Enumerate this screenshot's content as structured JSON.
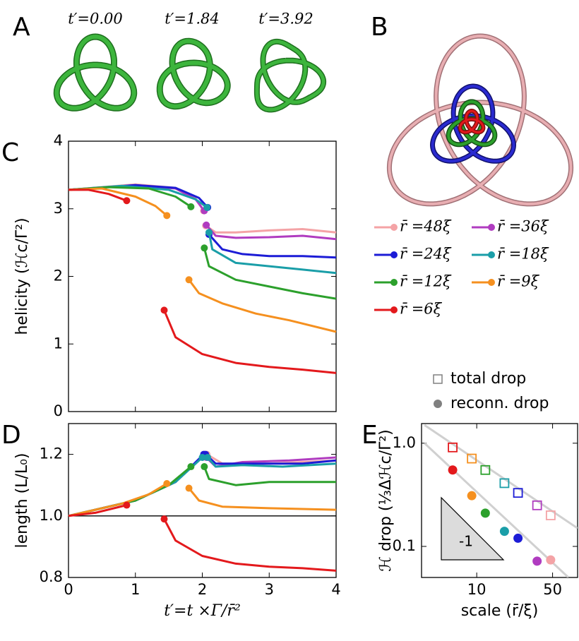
{
  "panel_a": {
    "label": "A",
    "captions": [
      "t′=0.00",
      "t′=1.84",
      "t′=3.92"
    ]
  },
  "panel_b": {
    "label": "B"
  },
  "chart_data": [
    {
      "type": "line",
      "panel_label": "C",
      "ylabel": "helicity (ℋc/Γ²)",
      "xlim": [
        0,
        4
      ],
      "xticks": [
        0,
        1,
        2,
        3,
        4
      ],
      "ylim": [
        0,
        4
      ],
      "yticks": [
        0,
        1,
        2,
        3,
        4
      ],
      "legend": "right",
      "series": [
        {
          "name": "r̄ =48ξ",
          "color": "#f4a3a6",
          "x": [
            0,
            1,
            1.6,
            1.9,
            2.02,
            null,
            2.05,
            2.2,
            2.5,
            3,
            3.5,
            4
          ],
          "values": [
            3.28,
            3.36,
            3.31,
            3.15,
            2.97,
            null,
            2.75,
            2.65,
            2.65,
            2.68,
            2.7,
            2.65
          ]
        },
        {
          "name": "r̄ =36ξ",
          "color": "#b03cc0",
          "x": [
            0,
            1,
            1.6,
            1.9,
            2.03,
            null,
            2.06,
            2.2,
            2.5,
            3,
            3.5,
            4
          ],
          "values": [
            3.28,
            3.35,
            3.3,
            3.14,
            2.97,
            null,
            2.76,
            2.6,
            2.57,
            2.58,
            2.6,
            2.55
          ]
        },
        {
          "name": "r̄ =24ξ",
          "color": "#1c1cd6",
          "x": [
            0,
            1,
            1.6,
            1.95,
            2.08,
            null,
            2.1,
            2.3,
            2.6,
            3,
            3.5,
            4
          ],
          "values": [
            3.28,
            3.35,
            3.31,
            3.16,
            3.02,
            null,
            2.62,
            2.4,
            2.33,
            2.3,
            2.3,
            2.28
          ]
        },
        {
          "name": "r̄ =18ξ",
          "color": "#1a9ea8",
          "x": [
            0,
            0.8,
            1.5,
            1.9,
            2.07,
            null,
            2.1,
            2.15,
            2.5,
            3,
            3.5,
            4
          ],
          "values": [
            3.28,
            3.34,
            3.28,
            3.14,
            3.02,
            null,
            2.65,
            2.4,
            2.2,
            2.15,
            2.1,
            2.05
          ]
        },
        {
          "name": "r̄ =12ξ",
          "color": "#2ca02c",
          "x": [
            0,
            0.6,
            1.2,
            1.6,
            1.83,
            null,
            2.03,
            2.1,
            2.5,
            3,
            3.5,
            4
          ],
          "values": [
            3.28,
            3.32,
            3.3,
            3.18,
            3.03,
            null,
            2.42,
            2.15,
            1.95,
            1.85,
            1.75,
            1.67
          ]
        },
        {
          "name": "r̄ =9ξ",
          "color": "#f5901f",
          "x": [
            0,
            0.5,
            1,
            1.3,
            1.47,
            null,
            1.8,
            1.95,
            2.3,
            2.8,
            3.3,
            4
          ],
          "values": [
            3.28,
            3.3,
            3.18,
            3.04,
            2.9,
            null,
            1.95,
            1.75,
            1.6,
            1.45,
            1.35,
            1.18
          ]
        },
        {
          "name": "r̄ =6ξ",
          "color": "#e3191c",
          "x": [
            0,
            0.3,
            0.6,
            0.87,
            null,
            1.43,
            1.6,
            2,
            2.5,
            3,
            3.5,
            4
          ],
          "values": [
            3.28,
            3.28,
            3.22,
            3.12,
            null,
            1.5,
            1.1,
            0.85,
            0.72,
            0.66,
            0.62,
            0.57
          ]
        }
      ]
    },
    {
      "type": "line",
      "panel_label": "D",
      "ylabel": "length (L/L₀)",
      "xlabel": "t′=t ×Γ/r̄²",
      "xlim": [
        0,
        4
      ],
      "xticks": [
        0,
        1,
        2,
        3,
        4
      ],
      "ylim": [
        0.8,
        1.3
      ],
      "yticks": [
        0.8,
        {
          "value": 1,
          "label": "1.0"
        },
        1.2
      ],
      "reference_line": 1,
      "series": [
        {
          "color": "#f4a3a6",
          "x": [
            0,
            1,
            1.6,
            2.04,
            null,
            2.07,
            2.3,
            3,
            4
          ],
          "values": [
            1,
            1.05,
            1.11,
            1.2,
            null,
            1.2,
            1.17,
            1.17,
            1.18
          ]
        },
        {
          "color": "#b03cc0",
          "x": [
            0,
            1,
            1.6,
            2.03,
            null,
            2.06,
            2.2,
            2.6,
            3.3,
            4
          ],
          "values": [
            1,
            1.05,
            1.11,
            1.2,
            null,
            1.19,
            1.16,
            1.175,
            1.18,
            1.19
          ]
        },
        {
          "color": "#1c1cd6",
          "x": [
            0,
            1,
            1.6,
            2.02,
            null,
            2.05,
            2.2,
            2.8,
            3.5,
            4
          ],
          "values": [
            1,
            1.05,
            1.11,
            1.2,
            null,
            1.2,
            1.17,
            1.17,
            1.17,
            1.18
          ]
        },
        {
          "color": "#1a9ea8",
          "x": [
            0,
            1,
            1.6,
            2.0,
            null,
            2.08,
            2.2,
            2.6,
            3.2,
            4
          ],
          "values": [
            1,
            1.05,
            1.11,
            1.19,
            null,
            1.19,
            1.16,
            1.165,
            1.16,
            1.17
          ]
        },
        {
          "color": "#2ca02c",
          "x": [
            0,
            1,
            1.5,
            1.83,
            null,
            2.03,
            2.1,
            2.5,
            3,
            4
          ],
          "values": [
            1,
            1.05,
            1.1,
            1.16,
            null,
            1.16,
            1.12,
            1.1,
            1.11,
            1.11
          ]
        },
        {
          "color": "#f5901f",
          "x": [
            0,
            0.8,
            1.2,
            1.47,
            null,
            1.8,
            1.95,
            2.3,
            3,
            4
          ],
          "values": [
            1,
            1.04,
            1.07,
            1.105,
            null,
            1.09,
            1.05,
            1.03,
            1.025,
            1.02
          ]
        },
        {
          "color": "#e3191c",
          "x": [
            0,
            0.4,
            0.87,
            null,
            1.43,
            1.6,
            2,
            2.5,
            3,
            3.5,
            4
          ],
          "values": [
            1,
            1.01,
            1.035,
            null,
            0.99,
            0.92,
            0.87,
            0.845,
            0.835,
            0.83,
            0.822
          ]
        }
      ]
    },
    {
      "type": "scatter",
      "panel_label": "E",
      "ylabel": "ℋ drop (⅓Δℋc/Γ²)",
      "xlabel": "scale (r̄/ξ)",
      "log_x": true,
      "log_y": true,
      "xlim": [
        3.1,
        85
      ],
      "xticks": [
        10,
        50
      ],
      "ylim": [
        0.05,
        1.55
      ],
      "yticks": [
        {
          "value": 0.1,
          "label": "0.1"
        },
        {
          "value": 1,
          "label": "1.0"
        }
      ],
      "legend": "top",
      "annotation": "-1",
      "fit_lines": [
        {
          "color": "#d0d0d0",
          "x": [
            3.3,
            85
          ],
          "values": [
            1.5,
            0.15
          ]
        },
        {
          "color": "#d0d0d0",
          "x": [
            3.3,
            70
          ],
          "values": [
            1.0,
            0.05
          ]
        }
      ],
      "series": [
        {
          "name": "total drop",
          "marker": "square",
          "legend_color": "#808080",
          "x": [
            6,
            9,
            12,
            18,
            24,
            36,
            48
          ],
          "values": [
            0.91,
            0.71,
            0.55,
            0.41,
            0.33,
            0.25,
            0.2
          ],
          "colors": [
            "#e3191c",
            "#f5901f",
            "#2ca02c",
            "#1a9ea8",
            "#1c1cd6",
            "#b03cc0",
            "#f4a3a6"
          ]
        },
        {
          "name": "reconn. drop",
          "marker": "circle",
          "legend_color": "#808080",
          "x": [
            6,
            9,
            12,
            18,
            24,
            36,
            48
          ],
          "values": [
            0.55,
            0.31,
            0.21,
            0.14,
            0.12,
            0.072,
            0.074
          ],
          "colors": [
            "#e3191c",
            "#f5901f",
            "#2ca02c",
            "#1a9ea8",
            "#1c1cd6",
            "#b03cc0",
            "#f4a3a6"
          ]
        }
      ]
    }
  ]
}
